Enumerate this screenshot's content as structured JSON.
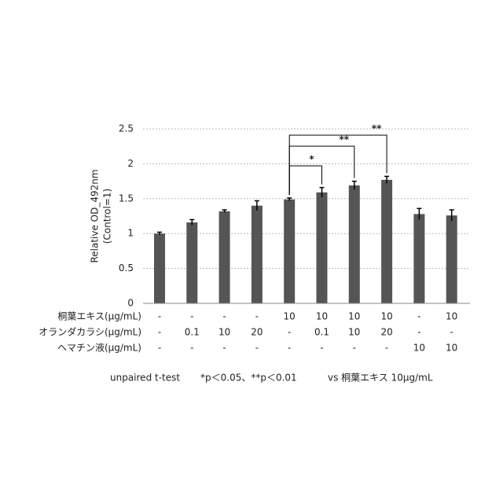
{
  "chart_data": {
    "type": "bar",
    "y_label": [
      "Relative OD_492nm",
      "(Control=1)"
    ],
    "values": [
      1.0,
      1.16,
      1.32,
      1.4,
      1.49,
      1.59,
      1.69,
      1.77,
      1.28,
      1.26
    ],
    "errors": [
      0.02,
      0.04,
      0.02,
      0.07,
      0.02,
      0.07,
      0.06,
      0.05,
      0.08,
      0.08
    ],
    "color": "#555555",
    "ylim": [
      0,
      2.5
    ],
    "yticks": [
      0,
      0.5,
      1,
      1.5,
      2,
      2.5
    ],
    "grid": true,
    "significance": [
      "*",
      "**",
      "**"
    ],
    "table": {
      "row_labels": [
        "桐葉エキス(μg/mL)",
        "オランダカラシ(μg/mL)",
        "ヘマチン液(μg/mL)"
      ],
      "rows": [
        [
          "-",
          "-",
          "-",
          "-",
          "10",
          "10",
          "10",
          "10",
          "-",
          "10"
        ],
        [
          "-",
          "0.1",
          "10",
          "20",
          "-",
          "0.1",
          "10",
          "20",
          "-",
          "-"
        ],
        [
          "-",
          "-",
          "-",
          "-",
          "-",
          "-",
          "-",
          "-",
          "10",
          "10"
        ]
      ]
    },
    "footnote": [
      "unpaired t-test",
      "*p＜0.05、**p＜0.01",
      "vs 桐葉エキス 10μg/mL"
    ]
  }
}
